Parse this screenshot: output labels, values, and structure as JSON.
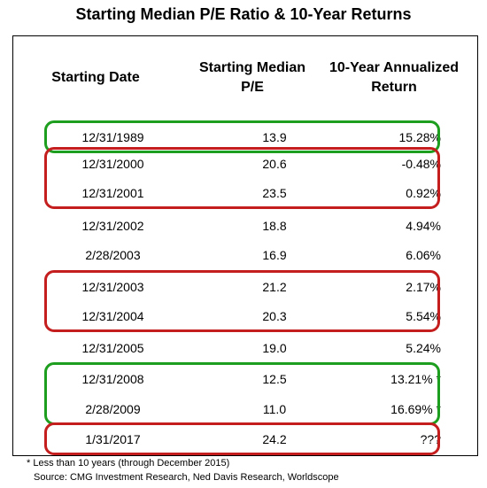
{
  "chart_data": {
    "type": "table",
    "title": "Starting Median P/E Ratio & 10-Year Returns",
    "columns": [
      "Starting Date",
      "Starting Median P/E",
      "10-Year Annualized Return"
    ],
    "rows": [
      {
        "date": "12/31/1989",
        "pe": "13.9",
        "ret": "15.28%",
        "highlight": "green"
      },
      {
        "date": "12/31/2000",
        "pe": "20.6",
        "ret": "-0.48%",
        "highlight": "red"
      },
      {
        "date": "12/31/2001",
        "pe": "23.5",
        "ret": "0.92%",
        "highlight": "red"
      },
      {
        "date": "12/31/2002",
        "pe": "18.8",
        "ret": "4.94%",
        "highlight": "none"
      },
      {
        "date": "2/28/2003",
        "pe": "16.9",
        "ret": "6.06%",
        "highlight": "none"
      },
      {
        "date": "12/31/2003",
        "pe": "21.2",
        "ret": "2.17%",
        "highlight": "red"
      },
      {
        "date": "12/31/2004",
        "pe": "20.3",
        "ret": "5.54%",
        "highlight": "red"
      },
      {
        "date": "12/31/2005",
        "pe": "19.0",
        "ret": "5.24%",
        "highlight": "none"
      },
      {
        "date": "12/31/2008",
        "pe": "12.5",
        "ret": "13.21% *",
        "highlight": "green"
      },
      {
        "date": "2/28/2009",
        "pe": "11.0",
        "ret": "16.69% *",
        "highlight": "green"
      },
      {
        "date": "1/31/2017",
        "pe": "24.2",
        "ret": "???",
        "highlight": "red"
      }
    ],
    "footnotes": [
      "* Less than 10 years (through December 2015)",
      "Source: CMG Investment Research, Ned Davis Research, Worldscope"
    ],
    "colors": {
      "green": "#1e9e1e",
      "red": "#c41e1e"
    }
  }
}
